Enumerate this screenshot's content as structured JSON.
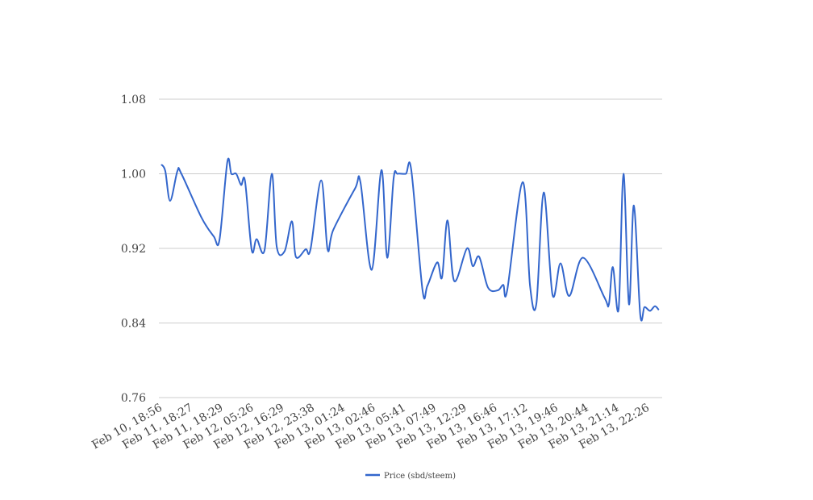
{
  "chart_data": {
    "type": "line",
    "title": "",
    "xlabel": "",
    "ylabel": "",
    "ylim": [
      0.76,
      1.08
    ],
    "yticks": [
      "0.76",
      "0.84",
      "0.92",
      "1.00",
      "1.08"
    ],
    "grid": true,
    "legend_position": "bottom",
    "x_tick_labels": [
      "Feb 10, 18:56",
      "Feb 11, 18:27",
      "Feb 11, 18:29",
      "Feb 12, 05:26",
      "Feb 12, 16:29",
      "Feb 12, 23:38",
      "Feb 13, 01:24",
      "Feb 13, 02:46",
      "Feb 13, 05:41",
      "Feb 13, 07:49",
      "Feb 13, 12:29",
      "Feb 13, 16:46",
      "Feb 13, 17:12",
      "Feb 13, 19:46",
      "Feb 13, 20:44",
      "Feb 13, 21:14",
      "Feb 13, 22:26"
    ],
    "series": [
      {
        "name": "Price (sbd/steem)",
        "color": "#3366cc",
        "x": [
          0,
          0.13,
          0.29,
          0.53,
          0.66,
          1.32,
          1.72,
          1.91,
          2.17,
          2.3,
          2.46,
          2.62,
          2.75,
          2.97,
          3.13,
          3.39,
          3.63,
          3.79,
          4.05,
          4.29,
          4.42,
          4.74,
          4.9,
          5.25,
          5.46,
          5.65,
          6.36,
          6.54,
          6.91,
          7.23,
          7.42,
          7.63,
          7.76,
          8.03,
          8.21,
          8.58,
          8.74,
          9.06,
          9.22,
          9.4,
          9.62,
          10.04,
          10.23,
          10.44,
          10.73,
          11.05,
          11.23,
          11.36,
          11.87,
          12.11,
          12.32,
          12.56,
          12.85,
          13.11,
          13.4,
          13.85,
          14.56,
          14.7,
          14.83,
          15.02,
          15.18,
          15.36,
          15.52,
          15.73,
          15.87,
          16.05,
          16.21,
          16.34
        ],
        "values": [
          1.01,
          1.003,
          0.971,
          1.003,
          1.0,
          0.953,
          0.933,
          0.929,
          1.013,
          1.0,
          1.0,
          0.988,
          0.992,
          0.918,
          0.93,
          0.918,
          1.0,
          0.922,
          0.917,
          0.949,
          0.911,
          0.919,
          0.919,
          0.993,
          0.919,
          0.94,
          0.984,
          0.991,
          0.897,
          1.004,
          0.91,
          0.995,
          1.0,
          1.0,
          1.004,
          0.875,
          0.88,
          0.905,
          0.889,
          0.95,
          0.885,
          0.92,
          0.901,
          0.911,
          0.878,
          0.875,
          0.881,
          0.875,
          0.991,
          0.88,
          0.861,
          0.98,
          0.87,
          0.904,
          0.869,
          0.91,
          0.867,
          0.86,
          0.9,
          0.855,
          1.0,
          0.86,
          0.966,
          0.849,
          0.857,
          0.853,
          0.858,
          0.854
        ]
      }
    ]
  }
}
